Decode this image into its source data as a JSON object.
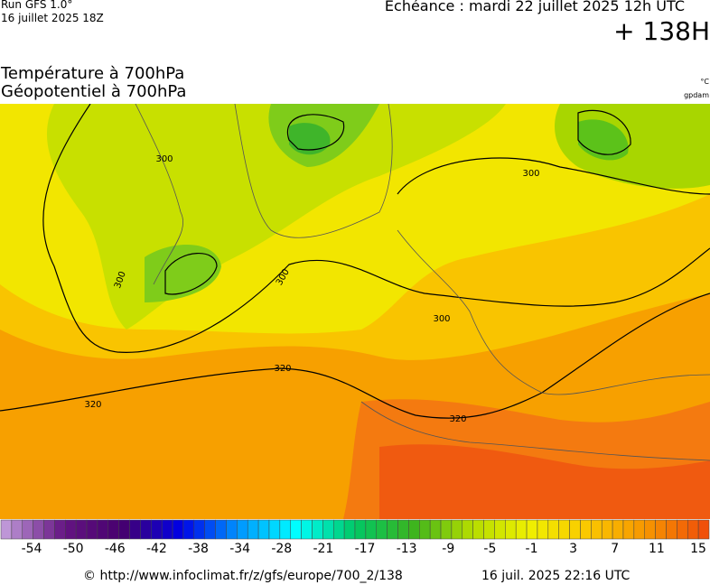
{
  "header": {
    "run": "Run GFS 1.0°",
    "run_date": "16 juillet 2025 18Z",
    "forecast": "Echéance : mardi 22 juillet 2025 12h UTC",
    "lead": "+ 138H",
    "title_line1": "Température à 700hPa",
    "title_line2": "Géopotentiel à 700hPa",
    "unit_temp": "°C",
    "unit_geo": "gpdam"
  },
  "map": {
    "contour_labels": [
      "300",
      "300",
      "300",
      "300",
      "300",
      "320",
      "320",
      "320"
    ]
  },
  "colorbar": {
    "ticks": [
      -54,
      -50,
      -46,
      -42,
      -38,
      -34,
      -28,
      -21,
      -17,
      -13,
      -9,
      -5,
      -1,
      3,
      7,
      11,
      15
    ]
  },
  "footer": {
    "source": "© http://www.infoclimat.fr/z/gfs/europe/700_2/138",
    "generated": "16 juil. 2025 22:16 UTC"
  }
}
